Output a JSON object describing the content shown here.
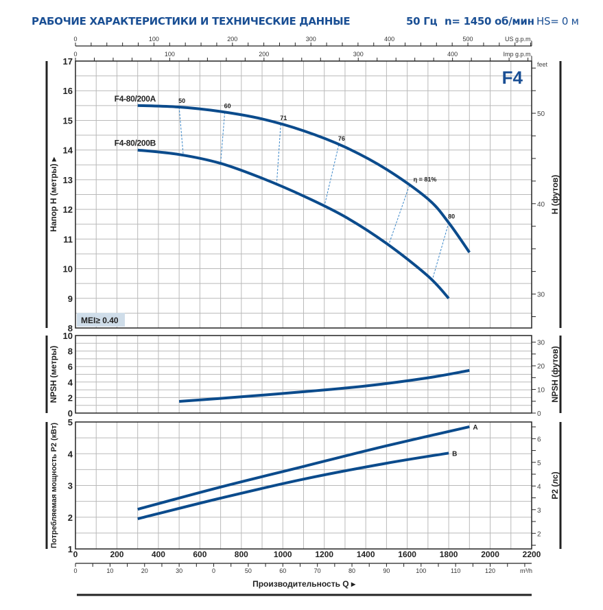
{
  "header": {
    "title": "РАБОЧИЕ ХАРАКТЕРИСТИКИ И ТЕХНИЧЕСКИЕ ДАННЫЕ",
    "freq": "50 Гц",
    "speed": "n= 1450 об/мин",
    "hs": "HS= 0 м"
  },
  "colors": {
    "curve": "#0b4b8c",
    "title": "#1a4f94",
    "grid": "#b9b9b9",
    "mei_bg": "#cfdde9",
    "eff": "#3a86c8"
  },
  "chart_data": [
    {
      "type": "line",
      "name": "head",
      "badge": "F4",
      "ylabel": "Напор H (метры)",
      "ylabel_right": "H (футов)",
      "right_unit": "feet",
      "ylim": [
        8,
        17
      ],
      "yticks": [
        "8",
        "9",
        "10",
        "11",
        "12",
        "13",
        "14",
        "15",
        "16",
        "17"
      ],
      "right_ticks": [
        "30",
        "40",
        "50"
      ],
      "mei": "MEI≥ 0.40",
      "top_axes": [
        {
          "unit": "US g.p.m.",
          "ticks": [
            "0",
            "100",
            "200",
            "300",
            "400",
            "500"
          ]
        },
        {
          "unit": "Imp g.p.m.",
          "ticks": [
            "0",
            "100",
            "200",
            "300",
            "400"
          ]
        }
      ],
      "series": [
        {
          "name": "F4-80/200A",
          "x": [
            300,
            500,
            700,
            900,
            1100,
            1300,
            1500,
            1700,
            1800,
            1900
          ],
          "y": [
            15.5,
            15.45,
            15.3,
            15.05,
            14.65,
            14.1,
            13.35,
            12.35,
            11.55,
            10.55
          ]
        },
        {
          "name": "F4-80/200B",
          "x": [
            300,
            500,
            700,
            900,
            1100,
            1300,
            1500,
            1700,
            1800
          ],
          "y": [
            14.0,
            13.85,
            13.55,
            13.05,
            12.45,
            11.75,
            10.85,
            9.75,
            9.0
          ]
        }
      ],
      "efficiency": [
        {
          "label": "50",
          "xa": 500,
          "xb": 520
        },
        {
          "label": "60",
          "xa": 720,
          "xb": 700
        },
        {
          "label": "71",
          "xa": 990,
          "xb": 970
        },
        {
          "label": "76",
          "xa": 1270,
          "xb": 1200
        },
        {
          "label": "η = 81%",
          "xa": 1610,
          "xb": 1510
        },
        {
          "label": "80",
          "xa": 1800,
          "xb": 1720
        }
      ]
    },
    {
      "type": "line",
      "name": "npsh",
      "ylabel": "NPSH (метры)",
      "ylabel_right": "NPSH (футов)",
      "ylim": [
        0,
        10
      ],
      "yticks": [
        "0",
        "2",
        "4",
        "6",
        "8",
        "10"
      ],
      "right_ticks": [
        "0",
        "10",
        "20",
        "30"
      ],
      "series": [
        {
          "name": "NPSH",
          "x": [
            500,
            800,
            1100,
            1400,
            1700,
            1900
          ],
          "y": [
            1.5,
            2.1,
            2.75,
            3.5,
            4.55,
            5.5
          ]
        }
      ]
    },
    {
      "type": "line",
      "name": "power",
      "ylabel": "Потребляемая мощность P2 (кВт)",
      "ylabel_right": "P2 (лс)",
      "ylim": [
        1,
        5
      ],
      "yticks": [
        "1",
        "2",
        "3",
        "4",
        "5"
      ],
      "right_ticks": [
        "2",
        "3",
        "4",
        "5",
        "6"
      ],
      "series": [
        {
          "name": "A",
          "x": [
            300,
            700,
            1100,
            1500,
            1900
          ],
          "y": [
            2.25,
            2.95,
            3.6,
            4.25,
            4.85
          ]
        },
        {
          "name": "B",
          "x": [
            300,
            700,
            1100,
            1500,
            1800
          ],
          "y": [
            1.95,
            2.6,
            3.2,
            3.7,
            4.02
          ]
        }
      ]
    }
  ],
  "x_axis": {
    "xlim": [
      0,
      2200
    ],
    "ticks": [
      "0",
      "200",
      "400",
      "600",
      "800",
      "1000",
      "1200",
      "1400",
      "1600",
      "1800",
      "2000",
      "2200"
    ],
    "m3h_ticks": [
      "0",
      "10",
      "20",
      "30",
      "0",
      "50",
      "60",
      "70",
      "80",
      "90",
      "100",
      "110",
      "120"
    ],
    "m3h_unit": "m³/h",
    "label": "Производительность Q"
  }
}
